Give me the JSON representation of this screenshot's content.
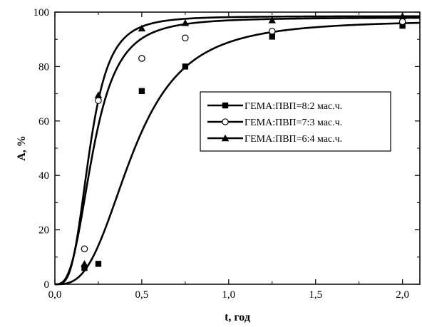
{
  "chart_data": {
    "type": "scatter",
    "xlabel": "t, год",
    "ylabel": "A, %",
    "xlim": [
      0,
      2.1
    ],
    "ylim": [
      0,
      100
    ],
    "x_ticks": [
      "0,0",
      "0,5",
      "1,0",
      "1,5",
      "2,0"
    ],
    "y_ticks": [
      "0",
      "20",
      "40",
      "60",
      "80",
      "100"
    ],
    "grid": false,
    "legend_position": "center-right",
    "fitted_curves": true,
    "series": [
      {
        "name": "ГЕМА:ПВП=8:2 мас.ч.",
        "marker": "filled-square",
        "color": "#000000",
        "x": [
          0.17,
          0.25,
          0.5,
          0.75,
          1.25,
          2.0
        ],
        "y": [
          6,
          7.5,
          71,
          80,
          91,
          95
        ],
        "curve": {
          "Amax": 97,
          "t50": 0.45,
          "n": 3.0
        }
      },
      {
        "name": "ГЕМА:ПВП=7:3 мас.ч.",
        "marker": "open-circle",
        "color": "#000000",
        "x": [
          0.17,
          0.25,
          0.5,
          0.75,
          1.25,
          2.0
        ],
        "y": [
          13,
          67.5,
          83,
          90.5,
          93,
          96.5
        ],
        "curve": {
          "Amax": 98,
          "t50": 0.22,
          "n": 3.0
        }
      },
      {
        "name": "ГЕМА:ПВП=6:4 мас.ч.",
        "marker": "filled-triangle",
        "color": "#000000",
        "x": [
          0.17,
          0.25,
          0.5,
          0.75,
          1.25,
          2.0
        ],
        "y": [
          7.5,
          69.5,
          94,
          96,
          97,
          98.5
        ],
        "curve": {
          "Amax": 98.5,
          "t50": 0.2,
          "n": 3.5
        }
      }
    ]
  }
}
